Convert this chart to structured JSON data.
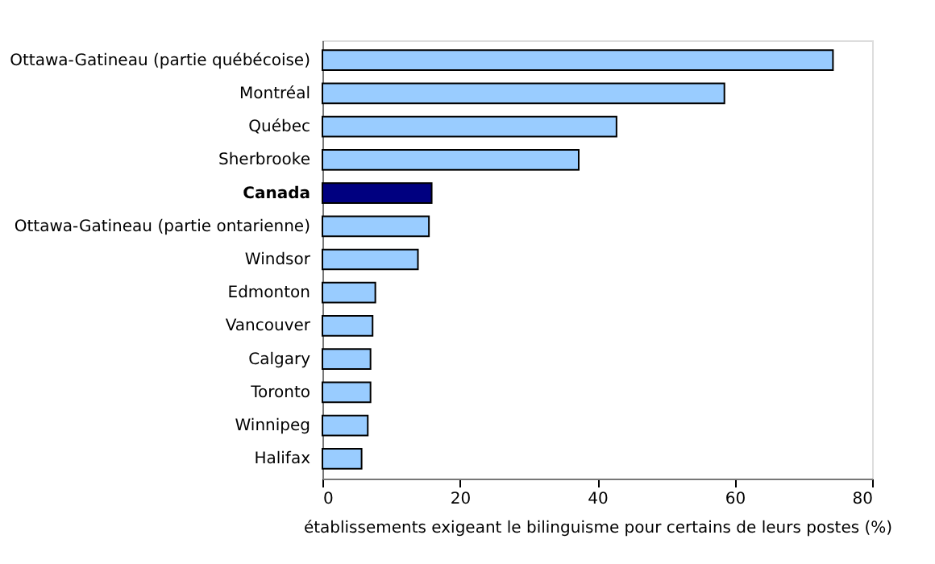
{
  "chart_data": {
    "type": "bar",
    "orientation": "horizontal",
    "xlabel": "établissements exigeant le bilinguisme pour certains de leurs postes (%)",
    "categories": [
      "Ottawa-Gatineau (partie québécoise)",
      "Montréal",
      "Québec",
      "Sherbrooke",
      "Canada",
      "Ottawa-Gatineau (partie ontarienne)",
      "Windsor",
      "Edmonton",
      "Vancouver",
      "Calgary",
      "Toronto",
      "Winnipeg",
      "Halifax"
    ],
    "values": [
      74.3,
      58.5,
      42.8,
      37.3,
      15.9,
      15.5,
      13.9,
      7.7,
      7.3,
      7.0,
      7.0,
      6.6,
      5.7
    ],
    "colors": [
      "#99ccff",
      "#99ccff",
      "#99ccff",
      "#99ccff",
      "#000080",
      "#99ccff",
      "#99ccff",
      "#99ccff",
      "#99ccff",
      "#99ccff",
      "#99ccff",
      "#99ccff",
      "#99ccff"
    ],
    "xlim": [
      0,
      80
    ],
    "xticks": [
      0,
      20,
      40,
      60,
      80
    ],
    "grid": false
  }
}
